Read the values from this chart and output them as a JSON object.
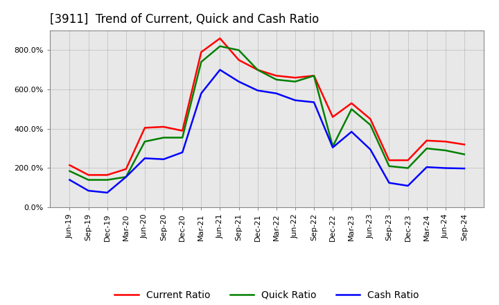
{
  "title": "[3911]  Trend of Current, Quick and Cash Ratio",
  "x_labels": [
    "Jun-19",
    "Sep-19",
    "Dec-19",
    "Mar-20",
    "Jun-20",
    "Sep-20",
    "Dec-20",
    "Mar-21",
    "Jun-21",
    "Sep-21",
    "Dec-21",
    "Mar-22",
    "Jun-22",
    "Sep-22",
    "Dec-22",
    "Mar-23",
    "Jun-23",
    "Sep-23",
    "Dec-23",
    "Mar-24",
    "Jun-24",
    "Sep-24"
  ],
  "current_ratio": [
    215,
    165,
    165,
    195,
    405,
    410,
    390,
    790,
    860,
    750,
    700,
    670,
    660,
    670,
    460,
    530,
    450,
    240,
    240,
    340,
    335,
    320
  ],
  "quick_ratio": [
    185,
    140,
    140,
    155,
    335,
    355,
    355,
    740,
    820,
    800,
    700,
    650,
    640,
    670,
    310,
    500,
    420,
    210,
    200,
    300,
    290,
    270
  ],
  "cash_ratio": [
    140,
    85,
    75,
    155,
    250,
    245,
    280,
    580,
    700,
    640,
    595,
    580,
    545,
    535,
    305,
    385,
    295,
    125,
    110,
    205,
    200,
    198
  ],
  "current_color": "#ff0000",
  "quick_color": "#008000",
  "cash_color": "#0000ff",
  "ylim": [
    0,
    900
  ],
  "yticks": [
    0,
    200,
    400,
    600,
    800
  ],
  "ytick_labels": [
    "0.0%",
    "200.0%",
    "400.0%",
    "600.0%",
    "800.0%"
  ],
  "background_color": "#ffffff",
  "plot_bg_color": "#e8e8e8",
  "grid_color": "#888888",
  "border_color": "#888888",
  "legend_labels": [
    "Current Ratio",
    "Quick Ratio",
    "Cash Ratio"
  ],
  "title_fontsize": 12,
  "tick_fontsize": 8,
  "legend_fontsize": 10,
  "line_width": 1.8
}
